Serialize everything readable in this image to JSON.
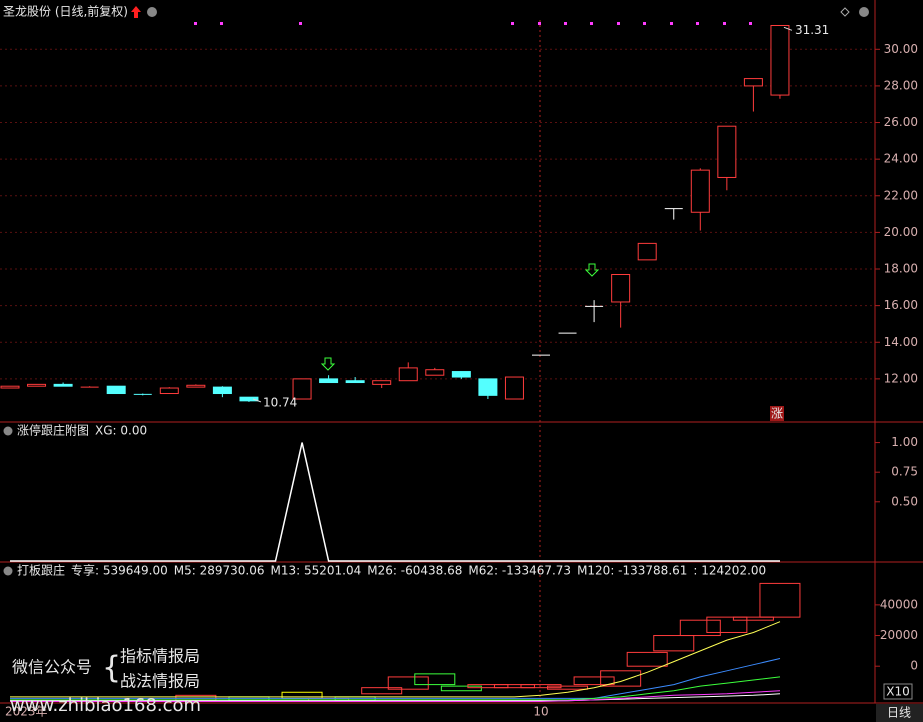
{
  "chart_data": [
    {
      "type": "candlestick",
      "title": "圣龙股份 (日线,前复权)",
      "categories": [
        "2023年",
        null,
        null,
        null,
        null,
        null,
        null,
        null,
        null,
        null,
        null,
        null,
        null,
        null,
        null,
        null,
        null,
        null,
        null,
        null,
        "10",
        null,
        null,
        null,
        null,
        null,
        null,
        null,
        null,
        null
      ],
      "open": [
        11.5,
        11.6,
        11.7,
        11.55,
        11.6,
        11.15,
        11.2,
        11.55,
        11.55,
        11.0,
        null,
        10.9,
        12.0,
        11.9,
        11.7,
        11.9,
        12.2,
        12.4,
        12.0,
        10.9,
        13.3,
        14.5,
        15.96,
        16.2,
        18.5,
        21.3,
        21.1,
        23.0,
        28.0,
        27.5
      ],
      "high": [
        11.6,
        11.7,
        11.8,
        11.6,
        11.6,
        11.2,
        11.55,
        11.7,
        11.6,
        11.0,
        null,
        12.0,
        12.2,
        12.1,
        11.9,
        12.9,
        12.6,
        12.4,
        12.0,
        12.1,
        13.3,
        14.5,
        16.3,
        17.7,
        19.4,
        21.3,
        23.5,
        25.8,
        28.4,
        31.31
      ],
      "low": [
        11.5,
        11.6,
        11.6,
        11.55,
        11.2,
        11.1,
        11.2,
        11.55,
        11.0,
        10.74,
        null,
        10.9,
        11.8,
        11.8,
        11.5,
        11.9,
        12.2,
        12.0,
        10.9,
        10.9,
        13.3,
        14.5,
        15.1,
        14.8,
        18.5,
        20.7,
        20.1,
        22.3,
        26.6,
        27.3
      ],
      "close": [
        11.6,
        11.7,
        11.6,
        11.6,
        11.2,
        11.1,
        11.5,
        11.65,
        11.2,
        10.8,
        null,
        12.0,
        11.8,
        11.8,
        11.9,
        12.6,
        12.5,
        12.1,
        11.1,
        12.1,
        13.3,
        14.5,
        15.96,
        17.7,
        19.4,
        21.3,
        23.4,
        25.8,
        28.4,
        31.3
      ],
      "up_color": "#ff3c3c",
      "down_color": "#54ffff",
      "flat_color": "#ffffff",
      "ylim": [
        10.3,
        31.6
      ],
      "yticks": [
        {
          "value": 12,
          "label": "12.00"
        },
        {
          "value": 14,
          "label": "14.00"
        },
        {
          "value": 16,
          "label": "16.00"
        },
        {
          "value": 18,
          "label": "18.00"
        },
        {
          "value": 20,
          "label": "20.00"
        },
        {
          "value": 22,
          "label": "22.00"
        },
        {
          "value": 24,
          "label": "24.00"
        },
        {
          "value": 26,
          "label": "26.00"
        },
        {
          "value": 28,
          "label": "28.00"
        },
        {
          "value": 30,
          "label": "30.00"
        }
      ],
      "grid": true,
      "limit_badge": "涨"
    },
    {
      "type": "line",
      "title": "涨停跟庄附图",
      "subtitle": "XG: 0.00",
      "color": "#ffffff",
      "values": [
        0,
        0,
        0,
        0,
        0,
        0,
        0,
        0,
        0,
        0,
        0,
        1,
        0,
        0,
        0,
        0,
        0,
        0,
        0,
        0,
        0,
        0,
        0,
        0,
        0,
        0,
        0,
        0,
        0,
        0
      ],
      "ylim": [
        0,
        1.14
      ],
      "yticks": [
        {
          "value": 0.5,
          "label": "0.50"
        },
        {
          "value": 0.75,
          "label": "0.75"
        },
        {
          "value": 1,
          "label": "1.00"
        }
      ]
    },
    {
      "type": "box",
      "title": "打板跟庄",
      "subtitle": "专享: 539649.00",
      "extra_label": ": 124202.00",
      "box_low": [
        null,
        null,
        null,
        null,
        null,
        null,
        null,
        -22000,
        null,
        -22000,
        null,
        -21000,
        -23000,
        -22000,
        -18000,
        -15000,
        -12000,
        -16000,
        -14000,
        -14000,
        -14000,
        -15000,
        -12000,
        -13000,
        0,
        10000,
        20000,
        22000,
        30000,
        32000
      ],
      "box_high": [
        null,
        null,
        null,
        null,
        null,
        null,
        null,
        -19000,
        null,
        -20000,
        null,
        -17000,
        -21000,
        -20000,
        -14000,
        -7000,
        -5000,
        -13000,
        -12000,
        -12000,
        -12000,
        -13000,
        -7000,
        -3000,
        9000,
        20000,
        30000,
        32000,
        32000,
        54000
      ],
      "box_colors": [
        null,
        null,
        null,
        null,
        null,
        null,
        null,
        "#ff3c3c",
        null,
        "#3cff3c",
        null,
        "#ffff00",
        "#ff3c3c",
        "#3cff3c",
        "#ff3c3c",
        "#ff3c3c",
        "#3cff3c",
        "#3cff3c",
        "#ff3c3c",
        "#ff3c3c",
        "#ff3c3c",
        "#ff3c3c",
        "#ff3c3c",
        "#ff3c3c",
        "#ff3c3c",
        "#ff3c3c",
        "#ff3c3c",
        "#ff3c3c",
        "#ff3c3c",
        "#ff3c3c"
      ],
      "series": [
        {
          "name": "M5: 289730.06",
          "color": "#ffff55",
          "values": [
            -20000,
            -20000,
            -20000,
            -20000,
            -20000,
            -20000,
            -20000,
            -20000,
            -20000,
            -20000,
            -20000,
            -20000,
            -20000,
            -20000,
            -20000,
            -20000,
            -20000,
            -20000,
            -20000,
            -20000,
            -19000,
            -17000,
            -14000,
            -10000,
            -4000,
            3000,
            10000,
            17000,
            22000,
            29000
          ]
        },
        {
          "name": "M13: 55201.04",
          "color": "#3c8cff",
          "values": [
            -21000,
            -21000,
            -21000,
            -21000,
            -21000,
            -21000,
            -21000,
            -21000,
            -21000,
            -21000,
            -21000,
            -21000,
            -21000,
            -21000,
            -21000,
            -21000,
            -21000,
            -21000,
            -21000,
            -21000,
            -21000,
            -21000,
            -21000,
            -18000,
            -15000,
            -12000,
            -7000,
            -3000,
            1000,
            5000
          ]
        },
        {
          "name": "M26: -60438.68",
          "color": "#3cff3c",
          "values": [
            -22000,
            -22000,
            -22000,
            -22000,
            -22000,
            -22000,
            -22000,
            -22000,
            -22000,
            -22000,
            -22000,
            -22000,
            -22000,
            -22000,
            -22000,
            -22000,
            -22000,
            -22000,
            -22000,
            -22000,
            -22000,
            -22000,
            -21000,
            -20000,
            -18000,
            -16000,
            -13000,
            -11000,
            -9000,
            -7000
          ]
        },
        {
          "name": "M62: -133467.73",
          "color": "#ffffff",
          "values": [
            -22500,
            -22500,
            -22500,
            -22500,
            -22500,
            -22500,
            -22500,
            -22500,
            -22500,
            -22500,
            -22500,
            -22500,
            -22500,
            -22500,
            -22500,
            -22500,
            -22500,
            -22500,
            -22500,
            -22500,
            -22500,
            -22500,
            -22000,
            -21500,
            -21000,
            -20500,
            -20000,
            -19500,
            -19000,
            -18000
          ]
        },
        {
          "name": "M120: -133788.61",
          "color": "#ff3cff",
          "values": [
            -23000,
            -23000,
            -23000,
            -23000,
            -23000,
            -23000,
            -23000,
            -23000,
            -23000,
            -23000,
            -23000,
            -23000,
            -23000,
            -23000,
            -23000,
            -23000,
            -23000,
            -23000,
            -23000,
            -23000,
            -23000,
            -22500,
            -22000,
            -21000,
            -20000,
            -19000,
            -18500,
            -18000,
            -17000,
            -16000
          ]
        }
      ],
      "ylim": [
        -24000,
        66000
      ],
      "yticks": [
        0,
        20000,
        40000
      ]
    }
  ],
  "footer": {
    "period": "日线",
    "zoom": "X10"
  },
  "watermark": {
    "label": "微信公众号",
    "line1": "指标情报局",
    "line2": "战法情报局",
    "url": "www.zhibiao168.com"
  }
}
